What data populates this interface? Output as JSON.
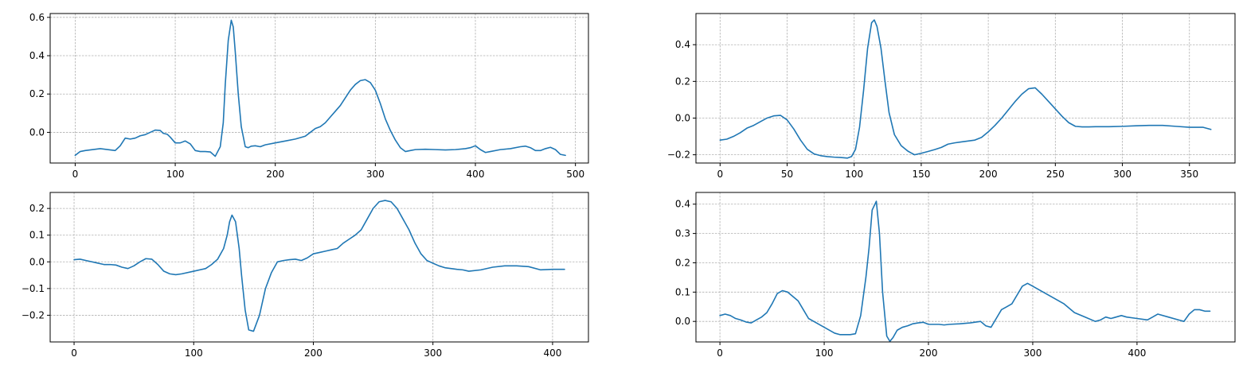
{
  "figure": {
    "line_color": "#1f77b4",
    "grid": true
  },
  "chart_data": [
    {
      "type": "line",
      "title": "",
      "xlabel": "",
      "ylabel": "",
      "xlim": [
        -25,
        513
      ],
      "ylim": [
        -0.16,
        0.62
      ],
      "xticks": [
        0,
        100,
        200,
        300,
        400,
        500
      ],
      "yticks": [
        -0.0,
        0.2,
        0.4,
        0.6
      ],
      "xtick_labels": [
        "0",
        "100",
        "200",
        "300",
        "400",
        "500"
      ],
      "ytick_labels": [
        "0.0",
        "0.2",
        "0.4",
        "0.6"
      ],
      "series": [
        {
          "x": [
            0,
            5,
            10,
            25,
            40,
            45,
            50,
            55,
            60,
            65,
            70,
            75,
            80,
            85,
            88,
            92,
            95,
            100,
            105,
            110,
            115,
            120,
            125,
            130,
            135,
            140,
            145,
            148,
            150,
            153,
            156,
            158,
            160,
            163,
            166,
            170,
            173,
            176,
            180,
            185,
            190,
            200,
            210,
            220,
            230,
            235,
            240,
            245,
            250,
            255,
            260,
            265,
            270,
            275,
            280,
            285,
            290,
            295,
            300,
            305,
            310,
            315,
            320,
            325,
            330,
            335,
            340,
            350,
            360,
            370,
            380,
            390,
            395,
            400,
            405,
            410,
            415,
            425,
            435,
            445,
            450,
            455,
            460,
            465,
            470,
            475,
            480,
            485,
            490
          ],
          "y": [
            -0.12,
            -0.1,
            -0.095,
            -0.085,
            -0.095,
            -0.07,
            -0.03,
            -0.035,
            -0.03,
            -0.018,
            -0.012,
            0.0,
            0.012,
            0.01,
            -0.005,
            -0.01,
            -0.025,
            -0.055,
            -0.055,
            -0.045,
            -0.06,
            -0.095,
            -0.1,
            -0.1,
            -0.102,
            -0.125,
            -0.075,
            0.05,
            0.25,
            0.48,
            0.585,
            0.55,
            0.42,
            0.2,
            0.03,
            -0.075,
            -0.08,
            -0.072,
            -0.07,
            -0.075,
            -0.065,
            -0.055,
            -0.045,
            -0.035,
            -0.02,
            0.0,
            0.02,
            0.03,
            0.05,
            0.08,
            0.11,
            0.14,
            0.18,
            0.22,
            0.25,
            0.27,
            0.275,
            0.26,
            0.22,
            0.15,
            0.07,
            0.01,
            -0.04,
            -0.08,
            -0.1,
            -0.095,
            -0.09,
            -0.088,
            -0.09,
            -0.092,
            -0.09,
            -0.085,
            -0.08,
            -0.07,
            -0.09,
            -0.105,
            -0.1,
            -0.09,
            -0.085,
            -0.075,
            -0.072,
            -0.08,
            -0.095,
            -0.095,
            -0.085,
            -0.078,
            -0.09,
            -0.115,
            -0.12
          ]
        }
      ]
    },
    {
      "type": "line",
      "title": "",
      "xlabel": "",
      "ylabel": "",
      "xlim": [
        -18,
        384
      ],
      "ylim": [
        -0.245,
        0.57
      ],
      "xticks": [
        0,
        50,
        100,
        150,
        200,
        250,
        300,
        350
      ],
      "yticks": [
        -0.2,
        0.0,
        0.2,
        0.4
      ],
      "xtick_labels": [
        "0",
        "50",
        "100",
        "150",
        "200",
        "250",
        "300",
        "350"
      ],
      "ytick_labels": [
        "−0.2",
        "0.0",
        "0.2",
        "0.4"
      ],
      "series": [
        {
          "x": [
            0,
            5,
            10,
            15,
            20,
            25,
            30,
            35,
            40,
            45,
            50,
            55,
            60,
            65,
            70,
            75,
            80,
            85,
            90,
            95,
            98,
            101,
            104,
            107,
            110,
            113,
            115,
            117,
            120,
            123,
            126,
            130,
            135,
            140,
            145,
            150,
            155,
            160,
            165,
            170,
            175,
            180,
            185,
            190,
            195,
            200,
            205,
            210,
            215,
            220,
            225,
            230,
            235,
            240,
            245,
            250,
            255,
            260,
            265,
            270,
            275,
            280,
            290,
            300,
            310,
            320,
            330,
            340,
            350,
            360,
            366
          ],
          "y": [
            -0.12,
            -0.115,
            -0.1,
            -0.08,
            -0.055,
            -0.04,
            -0.02,
            0.0,
            0.012,
            0.015,
            -0.01,
            -0.06,
            -0.12,
            -0.17,
            -0.195,
            -0.205,
            -0.21,
            -0.213,
            -0.215,
            -0.218,
            -0.21,
            -0.17,
            -0.05,
            0.15,
            0.38,
            0.52,
            0.535,
            0.5,
            0.38,
            0.2,
            0.03,
            -0.09,
            -0.15,
            -0.18,
            -0.2,
            -0.192,
            -0.182,
            -0.172,
            -0.16,
            -0.142,
            -0.135,
            -0.13,
            -0.125,
            -0.12,
            -0.105,
            -0.075,
            -0.04,
            0.0,
            0.045,
            0.09,
            0.13,
            0.16,
            0.165,
            0.13,
            0.09,
            0.05,
            0.01,
            -0.025,
            -0.045,
            -0.048,
            -0.048,
            -0.047,
            -0.047,
            -0.045,
            -0.042,
            -0.04,
            -0.04,
            -0.045,
            -0.05,
            -0.05,
            -0.062
          ]
        }
      ]
    },
    {
      "type": "line",
      "title": "",
      "xlabel": "",
      "ylabel": "",
      "xlim": [
        -20,
        430
      ],
      "ylim": [
        -0.3,
        0.26
      ],
      "xticks": [
        0,
        100,
        200,
        300,
        400
      ],
      "yticks": [
        -0.2,
        -0.1,
        0.0,
        0.1,
        0.2
      ],
      "xtick_labels": [
        "0",
        "100",
        "200",
        "300",
        "400"
      ],
      "ytick_labels": [
        "−0.2",
        "−0.1",
        "0.0",
        "0.1",
        "0.2"
      ],
      "series": [
        {
          "x": [
            0,
            5,
            10,
            20,
            25,
            30,
            35,
            40,
            45,
            50,
            55,
            60,
            65,
            70,
            75,
            80,
            85,
            90,
            100,
            110,
            115,
            120,
            125,
            128,
            130,
            132,
            135,
            138,
            140,
            143,
            146,
            150,
            155,
            160,
            165,
            170,
            175,
            180,
            185,
            190,
            195,
            200,
            205,
            210,
            215,
            220,
            225,
            230,
            235,
            240,
            245,
            250,
            255,
            260,
            265,
            270,
            275,
            280,
            285,
            290,
            295,
            300,
            305,
            310,
            315,
            320,
            325,
            330,
            340,
            350,
            360,
            370,
            380,
            390,
            400,
            410
          ],
          "y": [
            0.008,
            0.01,
            0.005,
            -0.005,
            -0.01,
            -0.01,
            -0.012,
            -0.02,
            -0.025,
            -0.015,
            0.0,
            0.012,
            0.01,
            -0.01,
            -0.035,
            -0.045,
            -0.048,
            -0.045,
            -0.035,
            -0.025,
            -0.01,
            0.01,
            0.05,
            0.1,
            0.15,
            0.175,
            0.15,
            0.05,
            -0.05,
            -0.18,
            -0.255,
            -0.26,
            -0.2,
            -0.1,
            -0.04,
            0.0,
            0.005,
            0.008,
            0.01,
            0.005,
            0.015,
            0.03,
            0.035,
            0.04,
            0.045,
            0.05,
            0.07,
            0.085,
            0.1,
            0.12,
            0.16,
            0.2,
            0.225,
            0.23,
            0.225,
            0.2,
            0.16,
            0.12,
            0.07,
            0.03,
            0.005,
            -0.005,
            -0.015,
            -0.022,
            -0.025,
            -0.028,
            -0.03,
            -0.035,
            -0.03,
            -0.02,
            -0.015,
            -0.015,
            -0.018,
            -0.03,
            -0.028,
            -0.028
          ]
        }
      ]
    },
    {
      "type": "line",
      "title": "",
      "xlabel": "",
      "ylabel": "",
      "xlim": [
        -23,
        494
      ],
      "ylim": [
        -0.07,
        0.44
      ],
      "xticks": [
        0,
        100,
        200,
        300,
        400
      ],
      "yticks": [
        0.0,
        0.1,
        0.2,
        0.3,
        0.4
      ],
      "xtick_labels": [
        "0",
        "100",
        "200",
        "300",
        "400"
      ],
      "ytick_labels": [
        "0.0",
        "0.1",
        "0.2",
        "0.3",
        "0.4"
      ],
      "series": [
        {
          "x": [
            0,
            5,
            10,
            15,
            20,
            25,
            30,
            35,
            40,
            45,
            50,
            55,
            60,
            65,
            70,
            75,
            80,
            85,
            90,
            100,
            110,
            115,
            120,
            125,
            130,
            135,
            140,
            143,
            146,
            150,
            153,
            156,
            160,
            163,
            166,
            170,
            175,
            180,
            185,
            190,
            195,
            200,
            205,
            210,
            215,
            220,
            230,
            240,
            250,
            255,
            260,
            265,
            270,
            275,
            280,
            285,
            290,
            295,
            300,
            310,
            320,
            330,
            340,
            350,
            360,
            365,
            370,
            375,
            380,
            385,
            390,
            400,
            410,
            415,
            420,
            430,
            440,
            445,
            450,
            455,
            460,
            465,
            470
          ],
          "y": [
            0.02,
            0.025,
            0.02,
            0.01,
            0.005,
            -0.002,
            -0.005,
            0.005,
            0.015,
            0.03,
            0.06,
            0.095,
            0.105,
            0.1,
            0.085,
            0.07,
            0.04,
            0.01,
            0.0,
            -0.02,
            -0.04,
            -0.045,
            -0.045,
            -0.045,
            -0.042,
            0.02,
            0.15,
            0.25,
            0.38,
            0.41,
            0.3,
            0.1,
            -0.05,
            -0.068,
            -0.055,
            -0.03,
            -0.02,
            -0.015,
            -0.008,
            -0.005,
            -0.003,
            -0.01,
            -0.01,
            -0.01,
            -0.012,
            -0.01,
            -0.008,
            -0.005,
            0.0,
            -0.015,
            -0.02,
            0.01,
            0.04,
            0.05,
            0.06,
            0.09,
            0.12,
            0.13,
            0.12,
            0.1,
            0.08,
            0.06,
            0.03,
            0.015,
            0.0,
            0.005,
            0.015,
            0.01,
            0.015,
            0.02,
            0.015,
            0.01,
            0.005,
            0.015,
            0.025,
            0.015,
            0.005,
            0.0,
            0.025,
            0.04,
            0.04,
            0.035,
            0.035
          ]
        }
      ]
    }
  ]
}
